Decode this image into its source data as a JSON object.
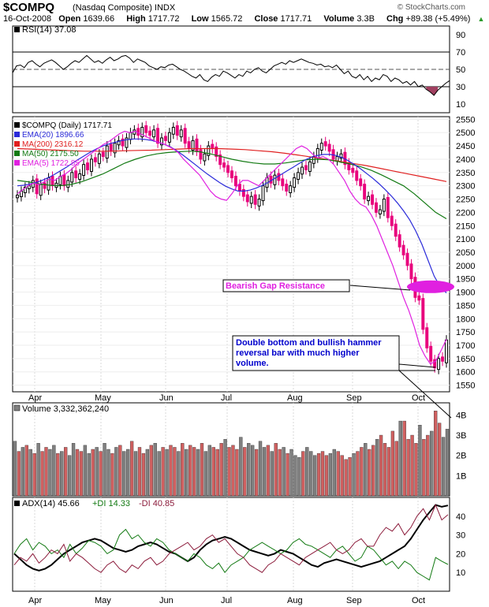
{
  "header": {
    "symbol": "$COMPQ",
    "name": "(Nasdaq Composite) INDX",
    "source": "© StockCharts.com",
    "date": "16-Oct-2008",
    "open_label": "Open",
    "open": "1639.66",
    "high_label": "High",
    "high": "1717.72",
    "low_label": "Low",
    "low": "1565.72",
    "close_label": "Close",
    "close": "1717.71",
    "volume_label": "Volume",
    "volume": "3.3B",
    "chg_label": "Chg",
    "chg": "+89.38 (+5.49%)",
    "chg_arrow": "▲"
  },
  "colors": {
    "up": "#000000",
    "down": "#e8007c",
    "ema20": "#2b2bd9",
    "ma200": "#e02020",
    "ma50": "#137a13",
    "ema5": "#e020e0",
    "rsi": "#000000",
    "vol_up": "#808080",
    "vol_down": "#d06060",
    "adx": "#000000",
    "plus_di": "#137a13",
    "minus_di": "#8b1a3a",
    "annotation": "#e020e0",
    "rsi_fill": "#a04060"
  },
  "chart_data": [
    {
      "type": "line",
      "panel": "rsi",
      "legend": "RSI(14) 37.08",
      "yticks": [
        90,
        70,
        50,
        30,
        10
      ],
      "ylim": [
        0,
        100
      ],
      "reference_lines": [
        70,
        50,
        30
      ],
      "series": [
        {
          "name": "RSI(14)",
          "x": [
            0,
            5,
            10,
            15,
            20,
            25,
            30,
            35,
            40,
            45,
            50,
            55,
            60,
            65,
            70,
            75,
            80,
            85,
            90,
            95,
            100,
            105,
            110,
            115,
            120,
            125,
            130,
            135,
            140,
            145,
            150,
            155,
            160,
            165,
            170,
            175,
            180,
            185,
            190,
            195,
            200,
            205,
            210,
            215,
            220,
            225,
            230,
            235,
            240,
            245,
            250,
            255,
            260,
            265,
            270,
            275,
            280,
            285,
            290,
            295,
            300,
            305,
            310,
            315,
            320,
            325,
            330,
            335,
            340,
            345,
            350,
            355,
            360,
            365,
            370,
            375,
            380,
            385,
            390,
            395,
            400,
            405,
            410,
            415,
            420,
            425,
            430,
            435,
            440,
            445,
            450,
            455,
            460,
            465,
            470,
            475,
            480,
            485,
            490,
            495,
            500,
            505,
            510,
            515,
            520,
            525,
            530,
            535,
            540,
            545,
            550,
            555,
            560
          ],
          "values": [
            46,
            54,
            55,
            52,
            58,
            60,
            56,
            53,
            57,
            59,
            61,
            58,
            54,
            50,
            53,
            57,
            60,
            58,
            62,
            66,
            62,
            58,
            60,
            57,
            61,
            64,
            60,
            62,
            65,
            66,
            63,
            58,
            62,
            60,
            58,
            54,
            52,
            50,
            53,
            52,
            55,
            56,
            53,
            50,
            48,
            45,
            42,
            40,
            44,
            38,
            36,
            41,
            44,
            42,
            48,
            46,
            43,
            40,
            44,
            42,
            48,
            46,
            50,
            52,
            48,
            46,
            50,
            54,
            56,
            58,
            56,
            60,
            58,
            60,
            62,
            60,
            58,
            57,
            55,
            56,
            53,
            54,
            52,
            55,
            50,
            45,
            48,
            42,
            40,
            44,
            38,
            42,
            36,
            40,
            38,
            44,
            42,
            36,
            40,
            38,
            34,
            36,
            32,
            36,
            30,
            32,
            27,
            24,
            20,
            26,
            30,
            34,
            37
          ]
        }
      ]
    },
    {
      "type": "candlestick",
      "panel": "price",
      "legend": [
        "$COMPQ (Daily) 1717.71",
        "EMA(20) 1896.66",
        "MA(200) 2316.12",
        "MA(50) 2175.50",
        "EMA(5) 1722.85"
      ],
      "x_tick_labels": [
        "Apr",
        "May",
        "Jun",
        "Jul",
        "Aug",
        "Sep",
        "Oct"
      ],
      "yticks": [
        2550,
        2500,
        2450,
        2400,
        2350,
        2300,
        2250,
        2200,
        2150,
        2100,
        2050,
        2000,
        1950,
        1900,
        1850,
        1800,
        1750,
        1700,
        1650,
        1600,
        1550
      ],
      "ylim": [
        1525,
        2560
      ],
      "closes": [
        2265,
        2280,
        2295,
        2300,
        2320,
        2270,
        2305,
        2290,
        2330,
        2300,
        2310,
        2335,
        2300,
        2320,
        2350,
        2330,
        2345,
        2380,
        2360,
        2400,
        2390,
        2420,
        2410,
        2450,
        2430,
        2460,
        2470,
        2450,
        2480,
        2500,
        2510,
        2490,
        2520,
        2500,
        2490,
        2510,
        2460,
        2480,
        2470,
        2500,
        2520,
        2490,
        2510,
        2460,
        2440,
        2470,
        2430,
        2400,
        2420,
        2450,
        2440,
        2410,
        2380,
        2370,
        2350,
        2330,
        2300,
        2280,
        2260,
        2240,
        2260,
        2230,
        2250,
        2300,
        2330,
        2310,
        2340,
        2320,
        2300,
        2280,
        2300,
        2330,
        2350,
        2370,
        2360,
        2390,
        2410,
        2440,
        2460,
        2450,
        2430,
        2400,
        2410,
        2420,
        2380,
        2360,
        2350,
        2320,
        2300,
        2250,
        2260,
        2230,
        2200,
        2210,
        2250,
        2180,
        2150,
        2110,
        2070,
        2040,
        2000,
        1950,
        1880,
        1870,
        1760,
        1690,
        1640,
        1615,
        1650,
        1640,
        1720
      ],
      "annotations": [
        "Bearish Gap Resistance",
        "Double bottom and bullish hammer reversal bar with much higher volume."
      ],
      "series": [
        {
          "name": "MA(200)",
          "values": [
            2440,
            2438,
            2436,
            2434,
            2432,
            2430,
            2430,
            2430,
            2432,
            2433,
            2434,
            2436,
            2438,
            2440,
            2440,
            2440,
            2438,
            2436,
            2432,
            2428,
            2422,
            2415,
            2408,
            2400,
            2392,
            2384,
            2376,
            2366,
            2356,
            2346,
            2336,
            2326,
            2316
          ]
        },
        {
          "name": "MA(50)",
          "values": [
            2320,
            2315,
            2308,
            2302,
            2300,
            2305,
            2315,
            2330,
            2345,
            2365,
            2385,
            2400,
            2412,
            2420,
            2425,
            2428,
            2430,
            2428,
            2420,
            2410,
            2400,
            2392,
            2386,
            2382,
            2382,
            2386,
            2392,
            2398,
            2400,
            2398,
            2390,
            2382,
            2372,
            2358,
            2340,
            2320,
            2300,
            2270,
            2235,
            2200,
            2176
          ]
        },
        {
          "name": "EMA(20)",
          "values": [
            2300,
            2302,
            2306,
            2312,
            2320,
            2330,
            2342,
            2356,
            2370,
            2385,
            2400,
            2414,
            2428,
            2440,
            2450,
            2458,
            2464,
            2470,
            2474,
            2476,
            2476,
            2474,
            2470,
            2464,
            2456,
            2446,
            2432,
            2416,
            2398,
            2380,
            2362,
            2344,
            2328,
            2312,
            2298,
            2288,
            2280,
            2280,
            2284,
            2292,
            2302,
            2314,
            2328,
            2342,
            2356,
            2370,
            2384,
            2398,
            2408,
            2414,
            2418,
            2418,
            2414,
            2406,
            2394,
            2380,
            2364,
            2346,
            2328,
            2308,
            2286,
            2262,
            2236,
            2206,
            2172,
            2130,
            2080,
            2020,
            1960,
            1920,
            1897
          ]
        },
        {
          "name": "EMA(5)",
          "values": [
            2270,
            2285,
            2300,
            2310,
            2305,
            2315,
            2325,
            2320,
            2335,
            2345,
            2360,
            2380,
            2395,
            2410,
            2425,
            2440,
            2455,
            2465,
            2480,
            2495,
            2505,
            2500,
            2505,
            2495,
            2485,
            2475,
            2465,
            2460,
            2450,
            2440,
            2425,
            2400,
            2380,
            2360,
            2340,
            2310,
            2280,
            2260,
            2250,
            2245,
            2270,
            2300,
            2320,
            2320,
            2310,
            2300,
            2320,
            2340,
            2360,
            2380,
            2400,
            2420,
            2440,
            2450,
            2440,
            2420,
            2405,
            2410,
            2400,
            2380,
            2350,
            2320,
            2280,
            2250,
            2230,
            2220,
            2190,
            2150,
            2100,
            2050,
            2000,
            1940,
            1880,
            1830,
            1770,
            1700,
            1660,
            1630,
            1640,
            1680,
            1723
          ]
        }
      ]
    },
    {
      "type": "bar",
      "panel": "volume",
      "legend": "Volume 3,332,362,240",
      "yticks_labels": [
        "4B",
        "3B",
        "2B",
        "1B"
      ],
      "yticks": [
        4,
        3,
        2,
        1
      ],
      "ylim": [
        0,
        4.6
      ],
      "unit": "B",
      "values": [
        2.7,
        2.2,
        2.4,
        2.5,
        2.3,
        2.1,
        2.6,
        2.2,
        2.4,
        2.3,
        2.5,
        2.1,
        2.2,
        2.4,
        2.0,
        2.6,
        2.3,
        2.2,
        2.5,
        2.1,
        2.3,
        2.4,
        2.2,
        2.6,
        2.3,
        2.1,
        2.4,
        2.5,
        2.2,
        2.3,
        2.7,
        2.2,
        2.4,
        2.1,
        2.3,
        2.5,
        2.6,
        2.2,
        2.4,
        2.3,
        2.5,
        2.4,
        2.2,
        2.6,
        2.3,
        2.5,
        2.4,
        2.3,
        2.6,
        2.2,
        2.5,
        2.4,
        2.3,
        2.6,
        2.8,
        2.4,
        2.5,
        2.3,
        2.9,
        2.4,
        2.6,
        2.5,
        2.3,
        2.7,
        2.4,
        2.5,
        2.2,
        2.6,
        2.3,
        2.4,
        2.1,
        2.3,
        2.0,
        1.9,
        2.2,
        2.4,
        2.2,
        2.0,
        2.1,
        2.2,
        2.0,
        2.1,
        2.3,
        2.2,
        2.0,
        1.8,
        1.9,
        2.1,
        2.2,
        2.4,
        2.6,
        2.3,
        2.5,
        2.8,
        3.0,
        2.6,
        2.4,
        3.2,
        2.7,
        3.7,
        3.7,
        2.8,
        3.0,
        2.6,
        3.5,
        2.8,
        3.0,
        3.2,
        4.2,
        3.6,
        2.9,
        3.3
      ],
      "up": [
        1,
        0,
        1,
        0,
        1,
        0,
        1,
        0,
        0,
        1,
        1,
        0,
        1,
        0,
        1,
        1,
        0,
        0,
        1,
        1,
        0,
        1,
        0,
        1,
        1,
        0,
        1,
        0,
        1,
        1,
        0,
        1,
        0,
        0,
        1,
        0,
        1,
        1,
        0,
        1,
        0,
        0,
        1,
        0,
        1,
        0,
        0,
        1,
        0,
        1,
        1,
        0,
        0,
        0,
        1,
        0,
        0,
        0,
        1,
        0,
        1,
        1,
        0,
        1,
        1,
        0,
        1,
        0,
        0,
        1,
        0,
        1,
        1,
        1,
        0,
        1,
        1,
        1,
        0,
        0,
        0,
        1,
        1,
        0,
        0,
        0,
        0,
        1,
        0,
        0,
        1,
        0,
        0,
        1,
        0,
        0,
        0,
        0,
        0,
        1,
        0,
        0,
        0,
        0,
        1,
        0,
        0,
        1,
        0,
        0,
        1,
        1
      ]
    },
    {
      "type": "line",
      "panel": "adx",
      "legend": [
        "ADX(14) 45.66",
        "+DI 14.33",
        "-DI 40.85"
      ],
      "yticks": [
        40,
        30,
        20,
        10
      ],
      "ylim": [
        0,
        50
      ],
      "series": [
        {
          "name": "ADX(14)",
          "values": [
            20,
            17,
            14,
            12,
            11,
            12,
            14,
            17,
            20,
            22,
            24,
            26,
            27,
            28,
            27,
            25,
            23,
            22,
            21,
            22,
            24,
            25,
            26,
            25,
            23,
            21,
            20,
            18,
            16,
            18,
            22,
            25,
            27,
            28,
            29,
            28,
            26,
            24,
            22,
            21,
            20,
            19,
            20,
            22,
            21,
            20,
            18,
            16,
            14,
            13,
            15,
            16,
            17,
            16,
            15,
            14,
            13,
            14,
            15,
            16,
            18,
            20,
            22,
            24,
            28,
            33,
            38,
            42,
            46,
            45,
            45.7
          ]
        },
        {
          "name": "+DI",
          "values": [
            20,
            25,
            28,
            22,
            26,
            24,
            20,
            22,
            18,
            25,
            20,
            23,
            27,
            26,
            24,
            20,
            22,
            30,
            33,
            28,
            30,
            26,
            24,
            28,
            26,
            22,
            20,
            18,
            16,
            20,
            18,
            14,
            12,
            15,
            10,
            14,
            16,
            18,
            22,
            24,
            26,
            24,
            22,
            20,
            22,
            26,
            28,
            25,
            24,
            22,
            20,
            18,
            22,
            24,
            20,
            16,
            18,
            24,
            22,
            18,
            14,
            16,
            12,
            16,
            14,
            10,
            8,
            6,
            18,
            16,
            14.3
          ]
        },
        {
          "name": "-DI",
          "values": [
            14,
            18,
            16,
            20,
            15,
            18,
            22,
            20,
            25,
            16,
            20,
            18,
            15,
            12,
            10,
            14,
            16,
            12,
            10,
            14,
            12,
            16,
            18,
            14,
            16,
            20,
            22,
            24,
            26,
            22,
            24,
            28,
            30,
            26,
            28,
            24,
            20,
            18,
            14,
            12,
            10,
            14,
            16,
            20,
            18,
            16,
            14,
            18,
            20,
            22,
            24,
            26,
            22,
            20,
            22,
            26,
            28,
            24,
            24,
            30,
            34,
            32,
            36,
            30,
            34,
            40,
            44,
            38,
            46,
            38,
            40.8
          ]
        }
      ]
    }
  ]
}
